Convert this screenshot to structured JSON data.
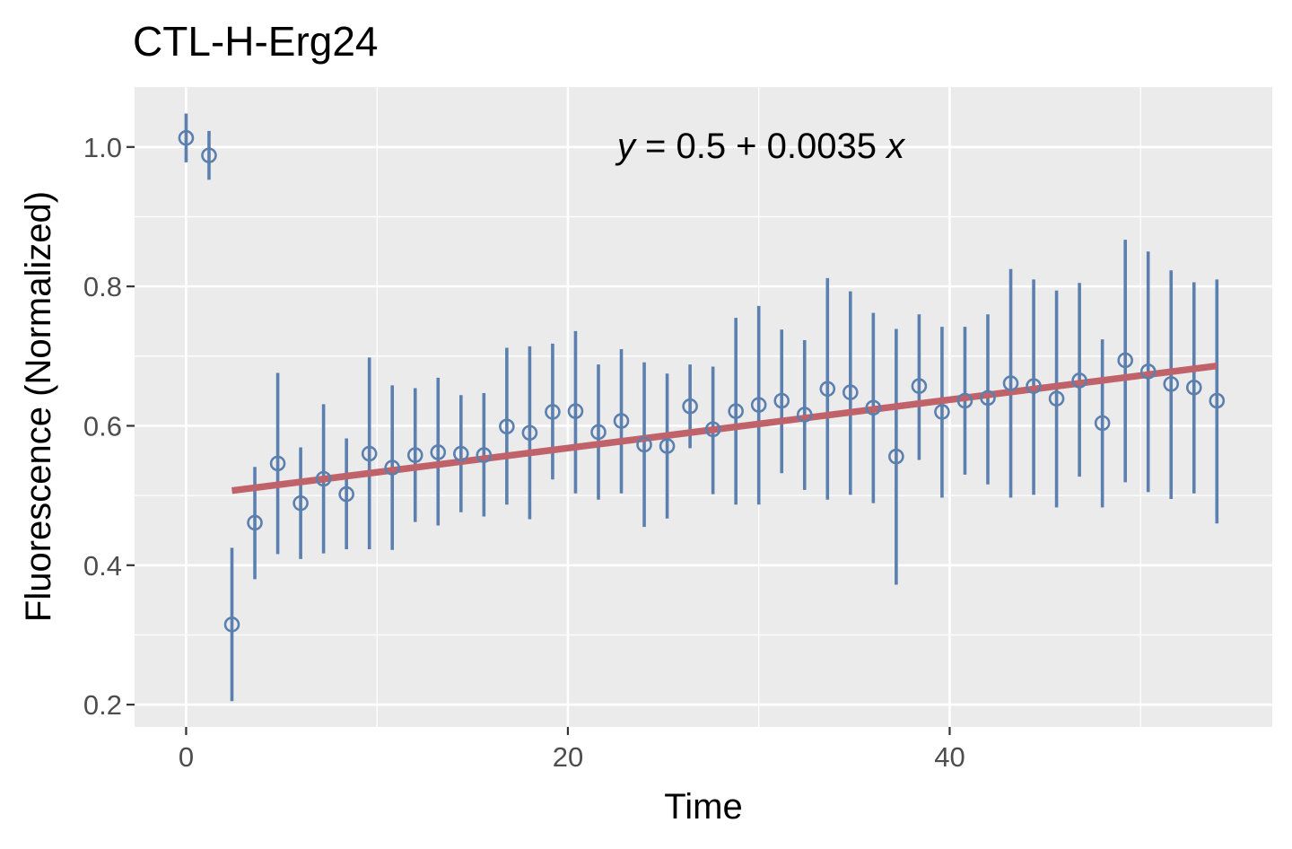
{
  "chart_data": {
    "type": "scatter",
    "title": "CTL-H-Erg24",
    "xlabel": "Time",
    "ylabel": "Fluorescence (Normalized)",
    "xlim": [
      -2.7,
      56.9
    ],
    "ylim": [
      0.168,
      1.086
    ],
    "x_ticks": [
      0,
      20,
      40
    ],
    "x_tick_labels": [
      "0",
      "20",
      "40"
    ],
    "y_ticks": [
      0.2,
      0.4,
      0.6,
      0.8,
      1.0
    ],
    "y_tick_labels": [
      "0.2",
      "0.4",
      "0.6",
      "0.8",
      "1.0"
    ],
    "grid": true,
    "panel_background": "#ebebeb",
    "point_color": "#5b7fae",
    "line_color": "#c0626a",
    "points": {
      "x": [
        0,
        1.2,
        2.4,
        3.6,
        4.8,
        6.0,
        7.2,
        8.4,
        9.6,
        10.8,
        12.0,
        13.2,
        14.4,
        15.6,
        16.8,
        18.0,
        19.2,
        20.4,
        21.6,
        22.8,
        24.0,
        25.2,
        26.4,
        27.6,
        28.8,
        30.0,
        31.2,
        32.4,
        33.6,
        34.8,
        36.0,
        37.2,
        38.4,
        39.6,
        40.8,
        42.0,
        43.2,
        44.4,
        45.6,
        46.8,
        48.0,
        49.2,
        50.4,
        51.6,
        52.8,
        54.0
      ],
      "y": [
        1.013,
        0.988,
        0.315,
        0.461,
        0.546,
        0.489,
        0.524,
        0.502,
        0.56,
        0.54,
        0.558,
        0.562,
        0.56,
        0.558,
        0.599,
        0.59,
        0.62,
        0.621,
        0.591,
        0.607,
        0.573,
        0.571,
        0.628,
        0.595,
        0.621,
        0.63,
        0.636,
        0.616,
        0.653,
        0.648,
        0.626,
        0.556,
        0.657,
        0.62,
        0.636,
        0.64,
        0.661,
        0.657,
        0.639,
        0.665,
        0.604,
        0.694,
        0.678,
        0.66,
        0.655,
        0.636
      ],
      "ymin": [
        0.978,
        0.953,
        0.205,
        0.38,
        0.416,
        0.409,
        0.417,
        0.423,
        0.423,
        0.422,
        0.462,
        0.457,
        0.476,
        0.47,
        0.487,
        0.466,
        0.523,
        0.503,
        0.494,
        0.503,
        0.455,
        0.467,
        0.568,
        0.502,
        0.487,
        0.487,
        0.532,
        0.508,
        0.494,
        0.501,
        0.489,
        0.372,
        0.551,
        0.497,
        0.53,
        0.516,
        0.497,
        0.501,
        0.483,
        0.527,
        0.483,
        0.519,
        0.505,
        0.495,
        0.503,
        0.46
      ],
      "ymax": [
        1.048,
        1.023,
        0.425,
        0.541,
        0.676,
        0.569,
        0.631,
        0.582,
        0.698,
        0.658,
        0.654,
        0.669,
        0.644,
        0.647,
        0.712,
        0.714,
        0.718,
        0.736,
        0.688,
        0.71,
        0.691,
        0.675,
        0.688,
        0.685,
        0.755,
        0.772,
        0.738,
        0.723,
        0.812,
        0.793,
        0.762,
        0.739,
        0.76,
        0.742,
        0.742,
        0.76,
        0.825,
        0.81,
        0.794,
        0.805,
        0.724,
        0.867,
        0.85,
        0.823,
        0.806,
        0.81
      ]
    },
    "fit_line": {
      "x": [
        2.4,
        54.0
      ],
      "y": [
        0.507,
        0.686
      ]
    },
    "annotation": {
      "prefix": "y",
      "middle": " = 0.5 + 0.0035 ",
      "suffix": "x"
    }
  }
}
